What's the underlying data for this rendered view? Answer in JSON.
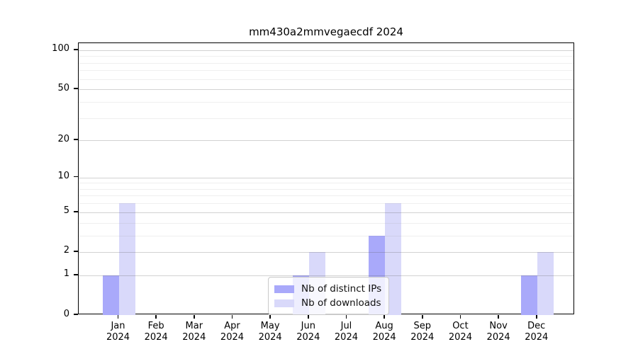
{
  "title": "mm430a2mmvegaecdf 2024",
  "chart_data": {
    "type": "bar",
    "categories": [
      "Jan 2024",
      "Feb 2024",
      "Mar 2024",
      "Apr 2024",
      "May 2024",
      "Jun 2024",
      "Jul 2024",
      "Aug 2024",
      "Sep 2024",
      "Oct 2024",
      "Nov 2024",
      "Dec 2024"
    ],
    "series": [
      {
        "name": "Nb of distinct IPs",
        "color": "#a9a9fa",
        "values": [
          1,
          0,
          0,
          0,
          0,
          1,
          0,
          3,
          0,
          0,
          0,
          1
        ]
      },
      {
        "name": "Nb of downloads",
        "color": "#d9d9fa",
        "values": [
          6,
          0,
          0,
          0,
          0,
          2,
          0,
          6,
          0,
          0,
          0,
          2
        ]
      }
    ],
    "title": "mm430a2mmvegaecdf 2024",
    "xlabel": "",
    "ylabel": "",
    "yscale": "log1p",
    "ylim": [
      0,
      113
    ],
    "yticks": [
      0,
      1,
      2,
      5,
      10,
      20,
      50,
      100
    ],
    "minor_gridlines": [
      3,
      4,
      6,
      7,
      8,
      9,
      30,
      40,
      60,
      70,
      80,
      90
    ],
    "grid": true,
    "legend_position": "bottom-center"
  },
  "colors": {
    "axis": "#000000",
    "major_grid": "#d3d3d3",
    "minor_grid": "#ededed",
    "background": "#ffffff"
  }
}
